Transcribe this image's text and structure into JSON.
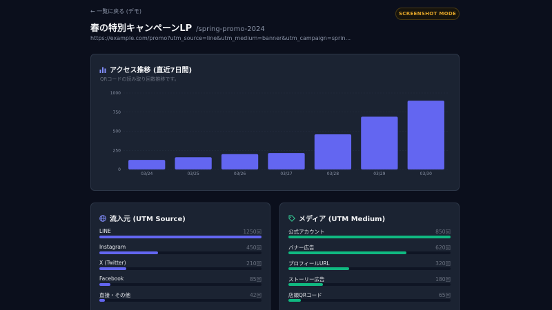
{
  "header": {
    "back_link": "← 一覧に戻る (デモ)",
    "title": "春の特別キャンペーンLP",
    "slug": "/spring-promo-2024",
    "url": "https://example.com/promo?utm_source=line&utm_medium=banner&utm_campaign=sprin...",
    "badge": "SCREENSHOT MODE"
  },
  "access": {
    "title": "アクセス推移 (直近7日間)",
    "subtitle": "QRコードの読み取り回数推移です。"
  },
  "chart_data": {
    "type": "bar",
    "categories": [
      "03/24",
      "03/25",
      "03/26",
      "03/27",
      "03/28",
      "03/29",
      "03/30"
    ],
    "values": [
      125,
      160,
      200,
      215,
      460,
      690,
      900
    ],
    "ylim": [
      0,
      1000
    ],
    "yticks": [
      0,
      250,
      500,
      750,
      1000
    ],
    "grid": true,
    "color": "#6366f1"
  },
  "sources": {
    "title": "流入元 (UTM Source)",
    "color": "#6366f1",
    "items": [
      {
        "label": "LINE",
        "count": "1250回",
        "value": 1250
      },
      {
        "label": "Instagram",
        "count": "450回",
        "value": 450
      },
      {
        "label": "X (Twitter)",
        "count": "210回",
        "value": 210
      },
      {
        "label": "Facebook",
        "count": "85回",
        "value": 85
      },
      {
        "label": "直接・その他",
        "count": "42回",
        "value": 42
      }
    ]
  },
  "mediums": {
    "title": "メディア (UTM Medium)",
    "color": "#10b981",
    "items": [
      {
        "label": "公式アカウント",
        "count": "850回",
        "value": 850
      },
      {
        "label": "バナー広告",
        "count": "620回",
        "value": 620
      },
      {
        "label": "プロフィールURL",
        "count": "320回",
        "value": 320
      },
      {
        "label": "ストーリー広告",
        "count": "180回",
        "value": 180
      },
      {
        "label": "店頭QRコード",
        "count": "65回",
        "value": 65
      }
    ]
  }
}
